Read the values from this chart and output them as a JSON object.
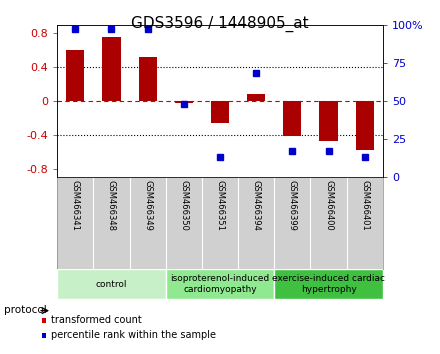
{
  "title": "GDS3596 / 1448905_at",
  "samples": [
    "GSM466341",
    "GSM466348",
    "GSM466349",
    "GSM466350",
    "GSM466351",
    "GSM466394",
    "GSM466399",
    "GSM466400",
    "GSM466401"
  ],
  "bar_values": [
    0.6,
    0.75,
    0.52,
    -0.02,
    -0.26,
    0.08,
    -0.42,
    -0.48,
    -0.58
  ],
  "dot_values": [
    97,
    97,
    97,
    48,
    13,
    68,
    17,
    17,
    13
  ],
  "bar_color": "#aa0000",
  "dot_color": "#0000cc",
  "ylim_left": [
    -0.9,
    0.9
  ],
  "ylim_right": [
    0,
    100
  ],
  "yticks_left": [
    -0.8,
    -0.4,
    0.0,
    0.4,
    0.8
  ],
  "yticks_right": [
    0,
    25,
    50,
    75,
    100
  ],
  "ytick_labels_left": [
    "-0.8",
    "-0.4",
    "0",
    "0.4",
    "0.8"
  ],
  "ytick_labels_right": [
    "0",
    "25",
    "50",
    "75",
    "100%"
  ],
  "groups": [
    {
      "label": "control",
      "start": 0,
      "end": 3,
      "color": "#c8f0c8"
    },
    {
      "label": "isoproterenol-induced\ncardiomyopathy",
      "start": 3,
      "end": 6,
      "color": "#90e890"
    },
    {
      "label": "exercise-induced cardiac\nhypertrophy",
      "start": 6,
      "end": 9,
      "color": "#40c040"
    }
  ],
  "protocol_label": "protocol",
  "legend_items": [
    {
      "label": "transformed count",
      "color": "#cc0000"
    },
    {
      "label": "percentile rank within the sample",
      "color": "#0000cc"
    }
  ],
  "bg_color": "#ffffff",
  "tick_label_color_left": "#cc0000",
  "tick_label_color_right": "#0000cc",
  "bar_width": 0.5,
  "sample_bg": "#d0d0d0"
}
